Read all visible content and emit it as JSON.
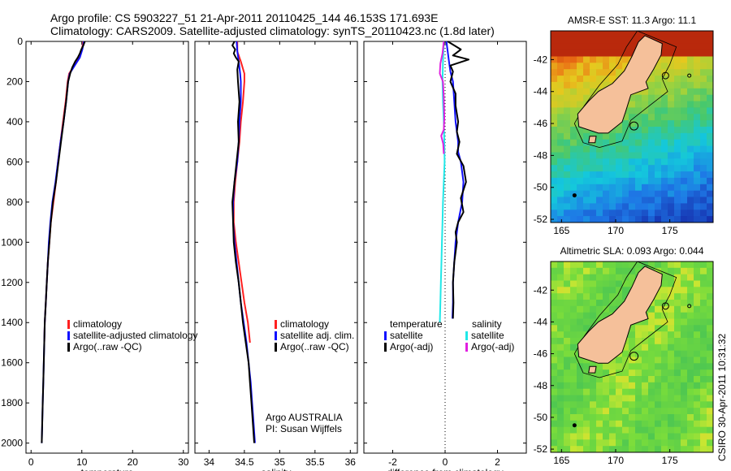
{
  "header": {
    "line1": "Argo profile: CS 5903227_51 21-Apr-2011 20110425_144 46.153S 171.693E",
    "line2": "Climatology: CARS2009. Satellite-adjusted climatology: synTS_20110423.nc (1.8d later)"
  },
  "side_label": "CSIRO 30-Apr-2011 10:31:32",
  "colors": {
    "climatology": "#ff2020",
    "satellite": "#1010ff",
    "argo": "#000000",
    "satellite_salinity": "#20e8e8",
    "argo_salinity": "#e020e0",
    "land": "#f5c09a",
    "coast": "#000000"
  },
  "chart_data": [
    {
      "id": "temperature",
      "type": "line",
      "xlabel": "temperature",
      "ylabel": "",
      "xlim": [
        -1,
        31
      ],
      "ylim": [
        2050,
        0
      ],
      "xticks": [
        0,
        10,
        20,
        30
      ],
      "yticks": [
        0,
        200,
        400,
        600,
        800,
        1000,
        1200,
        1400,
        1600,
        1800,
        2000
      ],
      "legend": [
        "climatology",
        "satellite-adjusted climatology",
        "Argo(..raw -QC)"
      ],
      "legend_position": "lower-right",
      "series": [
        {
          "name": "climatology",
          "color_key": "climatology",
          "points": [
            [
              10.3,
              0
            ],
            [
              10.0,
              40
            ],
            [
              9.5,
              80
            ],
            [
              8.5,
              120
            ],
            [
              7.5,
              160
            ],
            [
              7.2,
              200
            ],
            [
              6.8,
              300
            ],
            [
              6.3,
              400
            ],
            [
              5.8,
              500
            ],
            [
              5.3,
              600
            ],
            [
              4.9,
              700
            ],
            [
              4.4,
              800
            ],
            [
              3.9,
              900
            ],
            [
              3.6,
              1000
            ],
            [
              3.3,
              1100
            ],
            [
              3.1,
              1200
            ],
            [
              2.9,
              1300
            ],
            [
              2.7,
              1400
            ],
            [
              2.6,
              1500
            ]
          ]
        },
        {
          "name": "satellite-adjusted climatology",
          "color_key": "satellite",
          "points": [
            [
              10.4,
              0
            ],
            [
              10.1,
              40
            ],
            [
              9.6,
              80
            ],
            [
              8.6,
              120
            ],
            [
              7.6,
              160
            ],
            [
              7.3,
              200
            ],
            [
              6.9,
              300
            ],
            [
              6.4,
              400
            ],
            [
              5.8,
              500
            ],
            [
              5.3,
              600
            ],
            [
              4.8,
              700
            ],
            [
              4.2,
              800
            ],
            [
              3.8,
              900
            ],
            [
              3.5,
              1000
            ],
            [
              3.3,
              1100
            ],
            [
              3.1,
              1200
            ],
            [
              2.9,
              1300
            ],
            [
              2.7,
              1400
            ],
            [
              2.6,
              1500
            ],
            [
              2.5,
              1600
            ],
            [
              2.4,
              1700
            ],
            [
              2.3,
              1800
            ],
            [
              2.2,
              1900
            ],
            [
              2.1,
              2000
            ]
          ]
        },
        {
          "name": "Argo(..raw -QC)",
          "color_key": "argo",
          "points": [
            [
              10.6,
              0
            ],
            [
              10.3,
              20
            ],
            [
              9.9,
              40
            ],
            [
              9.6,
              60
            ],
            [
              9.2,
              80
            ],
            [
              8.7,
              100
            ],
            [
              8.1,
              130
            ],
            [
              7.7,
              160
            ],
            [
              7.3,
              200
            ],
            [
              6.9,
              300
            ],
            [
              6.4,
              400
            ],
            [
              5.9,
              500
            ],
            [
              5.4,
              600
            ],
            [
              4.9,
              700
            ],
            [
              4.3,
              800
            ],
            [
              3.9,
              900
            ],
            [
              3.6,
              1000
            ],
            [
              3.3,
              1100
            ],
            [
              3.1,
              1200
            ],
            [
              2.9,
              1300
            ],
            [
              2.7,
              1400
            ],
            [
              2.6,
              1500
            ],
            [
              2.5,
              1600
            ],
            [
              2.4,
              1700
            ],
            [
              2.3,
              1800
            ],
            [
              2.2,
              1900
            ],
            [
              2.1,
              2000
            ]
          ]
        }
      ]
    },
    {
      "id": "salinity",
      "type": "line",
      "xlabel": "salinity",
      "ylabel": "",
      "xlim": [
        33.8,
        36.1
      ],
      "ylim": [
        2050,
        0
      ],
      "xticks": [
        34,
        34.5,
        35,
        35.5,
        36
      ],
      "xtick_labels": [
        "34",
        "34.5",
        "35",
        "35.5",
        "36"
      ],
      "legend": [
        "climatology",
        "satellite adj. clim.",
        "Argo(..raw -QC)"
      ],
      "legend_position": "lower-right",
      "annotation": [
        "Argo AUSTRALIA",
        "PI: Susan Wijffels"
      ],
      "series": [
        {
          "name": "climatology",
          "color_key": "climatology",
          "points": [
            [
              34.4,
              0
            ],
            [
              34.4,
              50
            ],
            [
              34.45,
              100
            ],
            [
              34.5,
              160
            ],
            [
              34.5,
              200
            ],
            [
              34.48,
              300
            ],
            [
              34.45,
              400
            ],
            [
              34.43,
              500
            ],
            [
              34.4,
              600
            ],
            [
              34.37,
              700
            ],
            [
              34.35,
              800
            ],
            [
              34.35,
              900
            ],
            [
              34.38,
              1000
            ],
            [
              34.42,
              1100
            ],
            [
              34.46,
              1200
            ],
            [
              34.5,
              1300
            ],
            [
              34.55,
              1400
            ],
            [
              34.58,
              1500
            ]
          ]
        },
        {
          "name": "satellite adj. clim.",
          "color_key": "satellite",
          "points": [
            [
              34.39,
              0
            ],
            [
              34.4,
              50
            ],
            [
              34.42,
              100
            ],
            [
              34.44,
              160
            ],
            [
              34.45,
              200
            ],
            [
              34.45,
              300
            ],
            [
              34.43,
              400
            ],
            [
              34.42,
              500
            ],
            [
              34.4,
              600
            ],
            [
              34.36,
              700
            ],
            [
              34.34,
              800
            ],
            [
              34.34,
              900
            ],
            [
              34.36,
              1000
            ],
            [
              34.39,
              1100
            ],
            [
              34.42,
              1200
            ],
            [
              34.45,
              1300
            ],
            [
              34.49,
              1400
            ],
            [
              34.53,
              1500
            ],
            [
              34.56,
              1600
            ],
            [
              34.59,
              1700
            ],
            [
              34.61,
              1800
            ],
            [
              34.63,
              1900
            ],
            [
              34.65,
              2000
            ]
          ]
        },
        {
          "name": "Argo(..raw -QC)",
          "color_key": "argo",
          "points": [
            [
              34.36,
              0
            ],
            [
              34.33,
              20
            ],
            [
              34.37,
              40
            ],
            [
              34.35,
              60
            ],
            [
              34.38,
              80
            ],
            [
              34.42,
              100
            ],
            [
              34.4,
              140
            ],
            [
              34.41,
              200
            ],
            [
              34.43,
              300
            ],
            [
              34.41,
              400
            ],
            [
              34.42,
              500
            ],
            [
              34.39,
              600
            ],
            [
              34.36,
              700
            ],
            [
              34.33,
              800
            ],
            [
              34.34,
              900
            ],
            [
              34.35,
              1000
            ],
            [
              34.38,
              1100
            ],
            [
              34.42,
              1200
            ],
            [
              34.45,
              1300
            ],
            [
              34.48,
              1400
            ],
            [
              34.52,
              1500
            ],
            [
              34.56,
              1600
            ],
            [
              34.58,
              1700
            ],
            [
              34.6,
              1800
            ],
            [
              34.62,
              1900
            ],
            [
              34.64,
              2000
            ]
          ]
        }
      ]
    },
    {
      "id": "difference",
      "type": "line",
      "xlabel": "difference from climatology",
      "ylabel": "",
      "xlim": [
        -3.1,
        3.1
      ],
      "ylim": [
        2050,
        0
      ],
      "xticks": [
        -2,
        0,
        2
      ],
      "zero_line": true,
      "legend_groups": [
        {
          "title": "temperature",
          "items": [
            "satellite",
            "Argo(-adj)"
          ]
        },
        {
          "title": "salinity",
          "items": [
            "satellite",
            "Argo(-adj)"
          ]
        }
      ],
      "legend_position": "lower-center",
      "series": [
        {
          "name": "temperature satellite",
          "color_key": "satellite",
          "points": [
            [
              0.05,
              0
            ],
            [
              0.1,
              50
            ],
            [
              0.15,
              100
            ],
            [
              0.2,
              150
            ],
            [
              0.3,
              200
            ],
            [
              0.35,
              300
            ],
            [
              0.4,
              400
            ],
            [
              0.5,
              500
            ],
            [
              0.5,
              550
            ],
            [
              0.6,
              600
            ],
            [
              0.7,
              700
            ],
            [
              0.65,
              800
            ],
            [
              0.5,
              900
            ],
            [
              0.4,
              1000
            ],
            [
              0.35,
              1100
            ],
            [
              0.3,
              1200
            ],
            [
              0.3,
              1300
            ],
            [
              0.28,
              1380
            ]
          ]
        },
        {
          "name": "temperature Argo(-adj)",
          "color_key": "argo",
          "points": [
            [
              0.1,
              0
            ],
            [
              0.6,
              40
            ],
            [
              0.3,
              70
            ],
            [
              0.9,
              90
            ],
            [
              0.2,
              120
            ],
            [
              0.3,
              150
            ],
            [
              0.2,
              200
            ],
            [
              0.4,
              260
            ],
            [
              0.4,
              320
            ],
            [
              0.5,
              400
            ],
            [
              0.45,
              450
            ],
            [
              0.55,
              500
            ],
            [
              0.45,
              560
            ],
            [
              0.7,
              620
            ],
            [
              0.8,
              700
            ],
            [
              0.6,
              780
            ],
            [
              0.7,
              850
            ],
            [
              0.5,
              900
            ],
            [
              0.4,
              950
            ],
            [
              0.45,
              1000
            ],
            [
              0.35,
              1100
            ],
            [
              0.3,
              1200
            ],
            [
              0.32,
              1300
            ],
            [
              0.3,
              1380
            ]
          ]
        },
        {
          "name": "salinity satellite",
          "color_key": "satellite_salinity",
          "points": [
            [
              -0.05,
              0
            ],
            [
              -0.08,
              100
            ],
            [
              -0.1,
              200
            ],
            [
              -0.08,
              300
            ],
            [
              -0.05,
              400
            ],
            [
              -0.03,
              500
            ],
            [
              -0.02,
              600
            ],
            [
              -0.05,
              700
            ],
            [
              -0.08,
              800
            ],
            [
              -0.1,
              900
            ],
            [
              -0.12,
              1000
            ],
            [
              -0.14,
              1100
            ],
            [
              -0.16,
              1200
            ],
            [
              -0.18,
              1300
            ],
            [
              -0.2,
              1400
            ]
          ]
        },
        {
          "name": "salinity Argo(-adj)",
          "color_key": "argo_salinity",
          "points": [
            [
              -0.05,
              0
            ],
            [
              -0.1,
              60
            ],
            [
              -0.18,
              110
            ],
            [
              -0.2,
              160
            ],
            [
              -0.08,
              200
            ],
            [
              -0.05,
              280
            ],
            [
              -0.03,
              380
            ],
            [
              -0.05,
              440
            ],
            [
              -0.15,
              470
            ],
            [
              -0.07,
              510
            ],
            [
              -0.05,
              560
            ]
          ]
        }
      ]
    },
    {
      "id": "sst_map",
      "type": "heatmap",
      "title": "AMSR-E SST: 11.3 Argo: 11.1",
      "xlim": [
        164,
        179
      ],
      "ylim": [
        -52.2,
        -40.2
      ],
      "xticks": [
        165,
        170,
        175
      ],
      "yticks": [
        -42,
        -44,
        -46,
        -48,
        -50,
        -52
      ],
      "argo_position": [
        171.693,
        -46.153
      ]
    },
    {
      "id": "sla_map",
      "type": "heatmap",
      "title": "Altimetric SLA: 0.093 Argo: 0.044",
      "xlim": [
        164,
        179
      ],
      "ylim": [
        -52.2,
        -40.2
      ],
      "xticks": [
        165,
        170,
        175
      ],
      "yticks": [
        -42,
        -44,
        -46,
        -48,
        -50,
        -52
      ],
      "argo_position": [
        171.693,
        -46.153
      ]
    }
  ]
}
